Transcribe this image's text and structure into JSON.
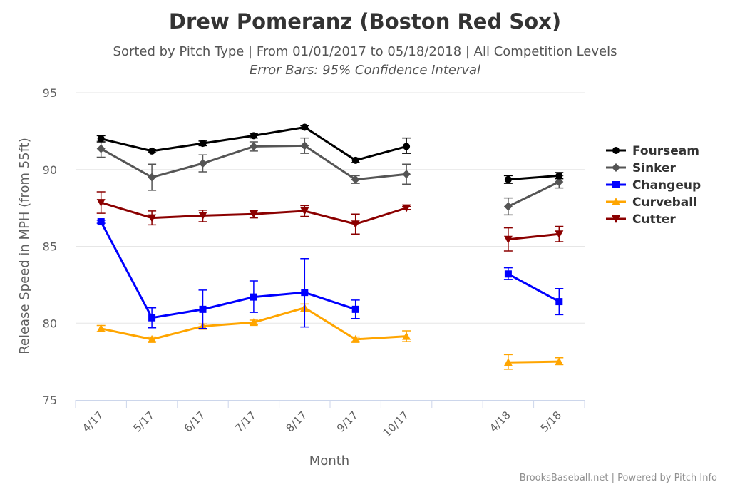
{
  "chart_data": {
    "type": "line",
    "title": "Drew Pomeranz (Boston Red Sox)",
    "subtitle": "Sorted by Pitch Type | From 01/01/2017 to 05/18/2018 | All Competition Levels",
    "subtitle2": "Error Bars: 95% Confidence Interval",
    "xlabel": "Month",
    "ylabel": "Release Speed in MPH (from 55ft)",
    "categories": [
      "4/17",
      "5/17",
      "6/17",
      "7/17",
      "8/17",
      "9/17",
      "10/17",
      "",
      "4/18",
      "5/18"
    ],
    "ylim": [
      75,
      95
    ],
    "yticks": [
      95,
      90,
      85,
      80,
      75
    ],
    "grid": true,
    "legend_position": "right",
    "credits": "BrooksBaseball.net | Powered by Pitch Info",
    "series": [
      {
        "name": "Fourseam",
        "color": "#000000",
        "marker": "circle",
        "values": [
          92.0,
          91.2,
          91.7,
          92.2,
          92.75,
          90.6,
          91.5,
          null,
          89.35,
          89.6
        ],
        "error_low": [
          91.8,
          91.1,
          91.55,
          92.05,
          92.65,
          90.45,
          91.05,
          null,
          89.1,
          89.4
        ],
        "error_high": [
          92.2,
          91.3,
          91.85,
          92.35,
          92.85,
          90.75,
          92.05,
          null,
          89.6,
          89.8
        ]
      },
      {
        "name": "Sinker",
        "color": "#555555",
        "marker": "diamond",
        "values": [
          91.35,
          89.5,
          90.4,
          91.5,
          91.55,
          89.35,
          89.7,
          null,
          87.6,
          89.2
        ],
        "error_low": [
          90.8,
          88.65,
          89.85,
          91.2,
          91.05,
          89.1,
          89.05,
          null,
          87.05,
          88.8
        ],
        "error_high": [
          91.9,
          90.35,
          90.95,
          91.8,
          92.05,
          89.6,
          90.35,
          null,
          88.15,
          89.6
        ]
      },
      {
        "name": "Changeup",
        "color": "#0000FF",
        "marker": "square",
        "values": [
          86.6,
          80.35,
          80.9,
          81.7,
          82.0,
          80.9,
          null,
          null,
          83.2,
          81.4
        ],
        "error_low": [
          86.5,
          79.7,
          79.65,
          80.7,
          79.75,
          80.3,
          null,
          null,
          82.85,
          80.55
        ],
        "error_high": [
          86.7,
          81.0,
          82.15,
          82.75,
          84.2,
          81.5,
          null,
          null,
          83.6,
          82.25
        ]
      },
      {
        "name": "Curveball",
        "color": "#FFA500",
        "marker": "triangle",
        "values": [
          79.65,
          78.95,
          79.8,
          80.05,
          81.0,
          78.95,
          79.15,
          null,
          77.45,
          77.5
        ],
        "error_low": [
          79.45,
          78.8,
          79.65,
          79.9,
          80.75,
          78.8,
          78.8,
          null,
          77.0,
          77.3
        ],
        "error_high": [
          79.85,
          79.1,
          79.95,
          80.2,
          81.25,
          79.1,
          79.5,
          null,
          77.95,
          77.75
        ]
      },
      {
        "name": "Cutter",
        "color": "#8B0000",
        "marker": "triangle-down",
        "values": [
          87.85,
          86.85,
          87.0,
          87.1,
          87.3,
          86.45,
          87.5,
          null,
          85.45,
          85.8
        ],
        "error_low": [
          87.15,
          86.4,
          86.6,
          86.85,
          86.95,
          85.8,
          87.4,
          null,
          84.7,
          85.3
        ],
        "error_high": [
          88.55,
          87.3,
          87.35,
          87.35,
          87.65,
          87.1,
          87.6,
          null,
          86.2,
          86.3
        ]
      }
    ]
  }
}
